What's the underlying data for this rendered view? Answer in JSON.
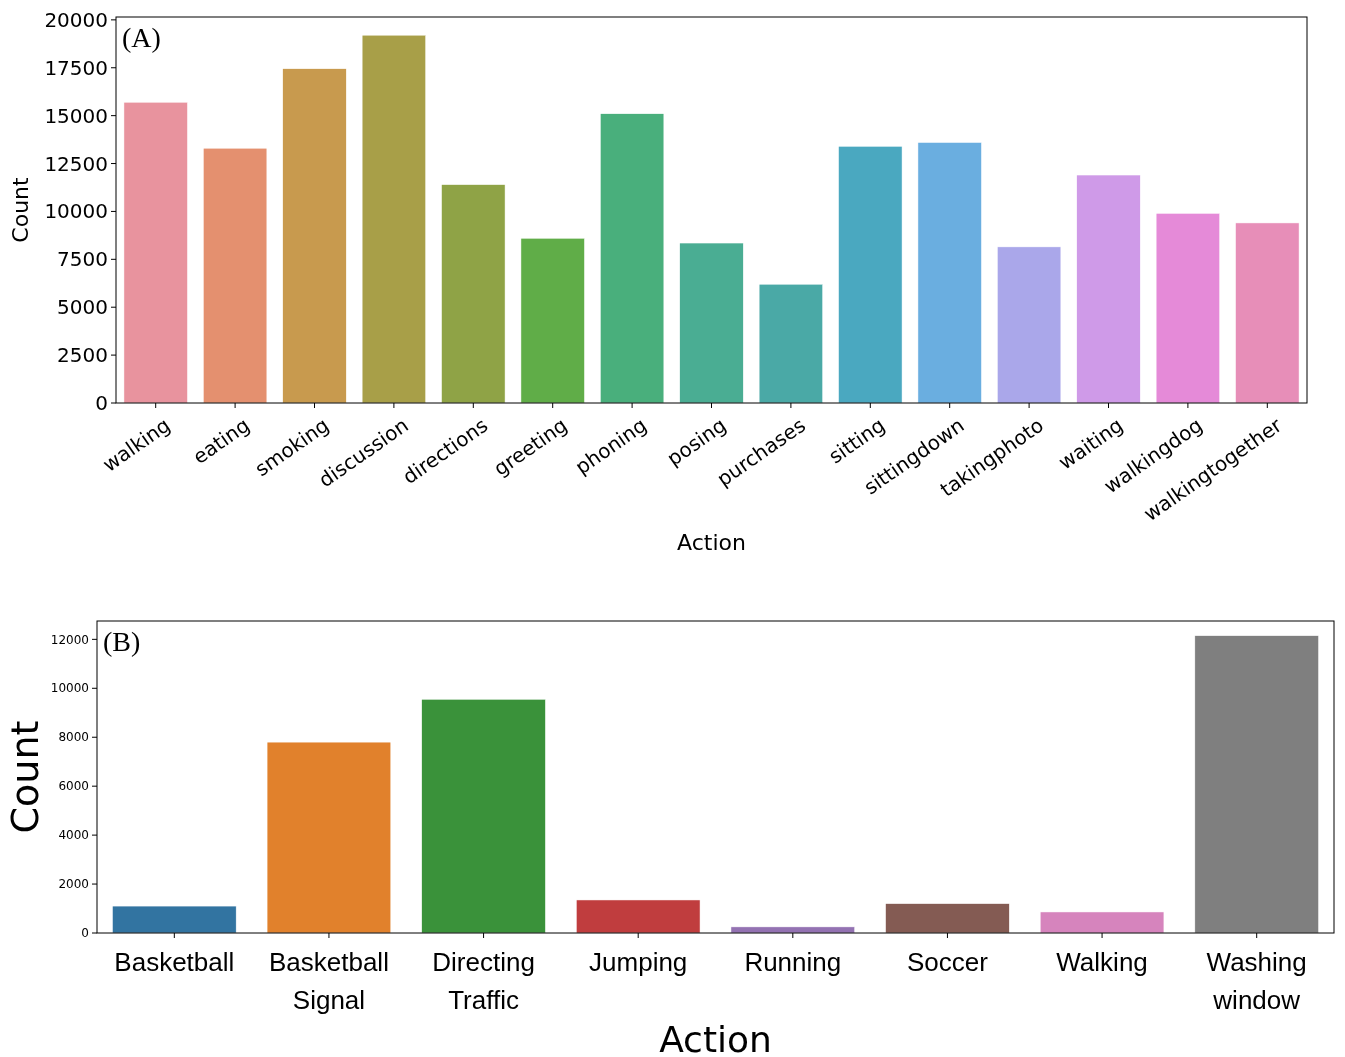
{
  "chart_data": [
    {
      "type": "bar",
      "title": "(A)",
      "xlabel": "Action",
      "ylabel": "Count",
      "categories": [
        "walking",
        "eating",
        "smoking",
        "discussion",
        "directions",
        "greeting",
        "phoning",
        "posing",
        "purchases",
        "sitting",
        "sittingdown",
        "takingphoto",
        "waiting",
        "walkingdog",
        "walkingtogether"
      ],
      "values": [
        15700,
        13300,
        17450,
        19200,
        11400,
        8600,
        15100,
        8350,
        6200,
        13400,
        13600,
        8150,
        11900,
        9900,
        9400
      ],
      "colors": [
        "#e8939e",
        "#e4906f",
        "#c89a4e",
        "#a89f48",
        "#8fa346",
        "#60ad48",
        "#49af7c",
        "#4aad93",
        "#4aa9a6",
        "#4aa8c0",
        "#6aaee0",
        "#aaa7ea",
        "#cf9ae8",
        "#e58ad8",
        "#e78eb8"
      ],
      "ylim": [
        0,
        20150
      ],
      "yticks": [
        0,
        2500,
        5000,
        7500,
        10000,
        12500,
        15000,
        17500,
        20000
      ],
      "grid": false
    },
    {
      "type": "bar",
      "title": "(B)",
      "xlabel": "Action",
      "ylabel": "Count",
      "categories": [
        "Basketball",
        "Basketball Signal",
        "Directing Traffic",
        "Jumping",
        "Running",
        "Soccer",
        "Walking",
        "Washing window"
      ],
      "values": [
        1100,
        7800,
        9550,
        1350,
        250,
        1200,
        860,
        12150
      ],
      "colors": [
        "#3274a1",
        "#e1812c",
        "#3a923a",
        "#c03d3e",
        "#9372b2",
        "#845b53",
        "#d684bd",
        "#7f7f7f"
      ],
      "ylim": [
        0,
        12750
      ],
      "yticks": [
        0,
        2000,
        4000,
        6000,
        8000,
        10000,
        12000
      ],
      "grid": false
    }
  ]
}
